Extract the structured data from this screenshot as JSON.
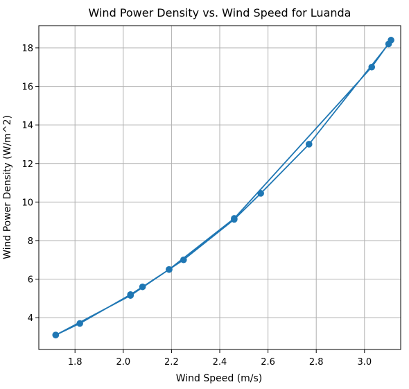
{
  "chart_data": {
    "type": "line",
    "title": "Wind Power Density vs. Wind Speed for Luanda",
    "xlabel": "Wind Speed (m/s)",
    "ylabel": "Wind Power Density (W/m^2)",
    "xlim": [
      1.65,
      3.15
    ],
    "ylim": [
      2.35,
      19.15
    ],
    "xticks": [
      1.8,
      2.0,
      2.2,
      2.4,
      2.6,
      2.8,
      3.0
    ],
    "xtick_labels": [
      "1.8",
      "2.0",
      "2.2",
      "2.4",
      "2.6",
      "2.8",
      "3.0"
    ],
    "yticks": [
      4,
      6,
      8,
      10,
      12,
      14,
      16,
      18
    ],
    "ytick_labels": [
      "4",
      "6",
      "8",
      "10",
      "12",
      "14",
      "16",
      "18"
    ],
    "grid": true,
    "legend": "none",
    "series": [
      {
        "color": "#1f77b4",
        "marker": "circle",
        "x": [
          1.72,
          1.82,
          2.03,
          2.08,
          2.19,
          2.25,
          2.46,
          2.57,
          2.77,
          3.1,
          3.11,
          3.03,
          2.46,
          2.19,
          2.03,
          1.72
        ],
        "y": [
          3.1,
          3.7,
          5.2,
          5.6,
          6.5,
          7.0,
          9.1,
          10.45,
          13.0,
          18.2,
          18.4,
          17.0,
          9.15,
          6.5,
          5.15,
          3.1
        ]
      }
    ]
  }
}
